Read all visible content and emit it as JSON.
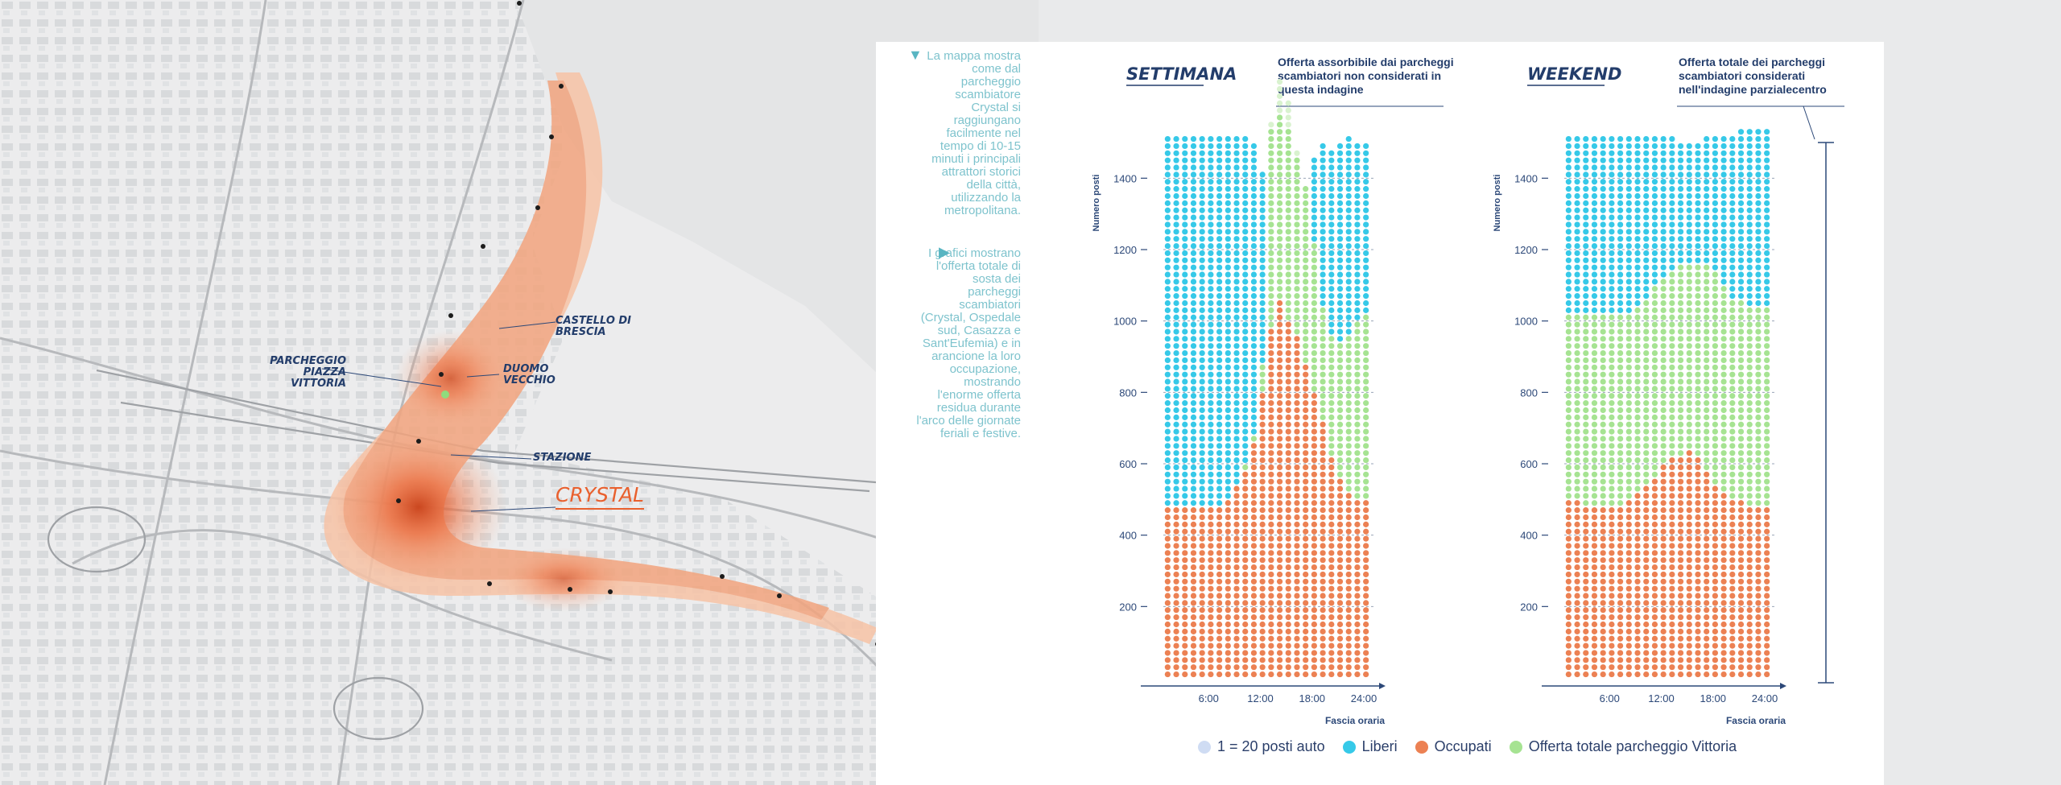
{
  "map": {
    "labels": {
      "castello": "CASTELLO DI BRESCIA",
      "parcheggio": "PARCHEGGIO PIAZZA VITTORIA",
      "duomo": "DUOMO VECCHIO",
      "stazione": "STAZIONE",
      "crystal": "CRYSTAL"
    }
  },
  "notes": {
    "map_note": "La mappa mostra come dal parcheggio scambiatore Crystal si raggiungano facilmente nel tempo di 10-15 minuti i principali attrattori storici della città, utilizzando la metropolitana.",
    "chart_note": "I grafici mostrano l'offerta totale di sosta dei parcheggi scambiatori (Crystal, Ospedale sud, Casazza e Sant'Eufemia) e in arancione la loro occupazione, mostrando l'enorme offerta residua durante l'arco delle giornate feriali e festive.",
    "arrow_down": "▼",
    "arrow_right": "▶"
  },
  "legend": {
    "unit": "1 = 20 posti auto",
    "liberi": "Liberi",
    "occupati": "Occupati",
    "vittoria": "Offerta totale parcheggio Vittoria"
  },
  "colors": {
    "liberi": "#36c9e8",
    "occupati": "#ec8153",
    "vittoria": "#a6e392",
    "unit": "#cfdcf3",
    "axis": "#2c4878",
    "title": "#233d6b"
  },
  "chart_data": [
    {
      "type": "bar",
      "title": "SETTIMANA",
      "annotation": "Offerta assorbibile dai parcheggi scambiatori non considerati in questa indagine",
      "xlabel": "Fascia oraria",
      "ylabel": "Numero posti",
      "x_ticks": [
        "6:00",
        "12:00",
        "18:00",
        "24:00"
      ],
      "y_ticks": [
        200,
        400,
        600,
        800,
        1000,
        1200,
        1400
      ],
      "ylim": [
        0,
        1500
      ],
      "hours": [
        0,
        1,
        2,
        3,
        4,
        5,
        6,
        7,
        8,
        9,
        10,
        11,
        12,
        13,
        14,
        15,
        16,
        17,
        18,
        19,
        20,
        21,
        22,
        23
      ],
      "series": [
        {
          "name": "Occupati",
          "values": [
            480,
            480,
            480,
            480,
            480,
            480,
            480,
            500,
            540,
            580,
            660,
            800,
            980,
            1060,
            1000,
            960,
            880,
            800,
            720,
            620,
            560,
            520,
            500,
            500
          ]
        },
        {
          "name": "Offerta totale parcheggio Vittoria",
          "values": [
            0,
            0,
            0,
            0,
            0,
            0,
            0,
            0,
            0,
            20,
            20,
            80,
            560,
            520,
            540,
            500,
            500,
            420,
            320,
            340,
            380,
            430,
            500,
            520
          ]
        },
        {
          "name": "Liberi",
          "values": [
            1040,
            1040,
            1040,
            1040,
            1040,
            1040,
            1040,
            1020,
            980,
            920,
            820,
            540,
            0,
            0,
            0,
            0,
            0,
            240,
            460,
            520,
            560,
            550,
            500,
            480
          ]
        },
        {
          "name": "Offerta assorbibile",
          "values": [
            0,
            0,
            0,
            0,
            0,
            0,
            0,
            0,
            0,
            0,
            0,
            0,
            20,
            100,
            80,
            20,
            0,
            0,
            0,
            0,
            0,
            0,
            0,
            0
          ]
        }
      ]
    },
    {
      "type": "bar",
      "title": "WEEKEND",
      "annotation": "Offerta totale dei parcheggi scambiatori considerati nell'indagine parzialecentro",
      "xlabel": "Fascia oraria",
      "ylabel": "Numero posti",
      "x_ticks": [
        "6:00",
        "12:00",
        "18:00",
        "24:00"
      ],
      "y_ticks": [
        200,
        400,
        600,
        800,
        1000,
        1200,
        1400
      ],
      "ylim": [
        0,
        1500
      ],
      "hours": [
        0,
        1,
        2,
        3,
        4,
        5,
        6,
        7,
        8,
        9,
        10,
        11,
        12,
        13,
        14,
        15,
        16,
        17,
        18,
        19,
        20,
        21,
        22,
        23
      ],
      "series": [
        {
          "name": "Occupati",
          "values": [
            500,
            500,
            480,
            480,
            480,
            480,
            480,
            500,
            520,
            540,
            560,
            600,
            620,
            620,
            640,
            620,
            580,
            540,
            520,
            500,
            500,
            480,
            480,
            480
          ]
        },
        {
          "name": "Offerta totale parcheggio Vittoria",
          "values": [
            520,
            520,
            540,
            540,
            540,
            540,
            540,
            520,
            520,
            520,
            540,
            520,
            520,
            540,
            520,
            540,
            580,
            600,
            580,
            560,
            560,
            560,
            560,
            560
          ]
        },
        {
          "name": "Liberi",
          "values": [
            500,
            500,
            500,
            500,
            500,
            500,
            500,
            500,
            480,
            460,
            420,
            400,
            380,
            340,
            340,
            340,
            360,
            380,
            420,
            460,
            480,
            500,
            500,
            500
          ]
        }
      ]
    }
  ]
}
